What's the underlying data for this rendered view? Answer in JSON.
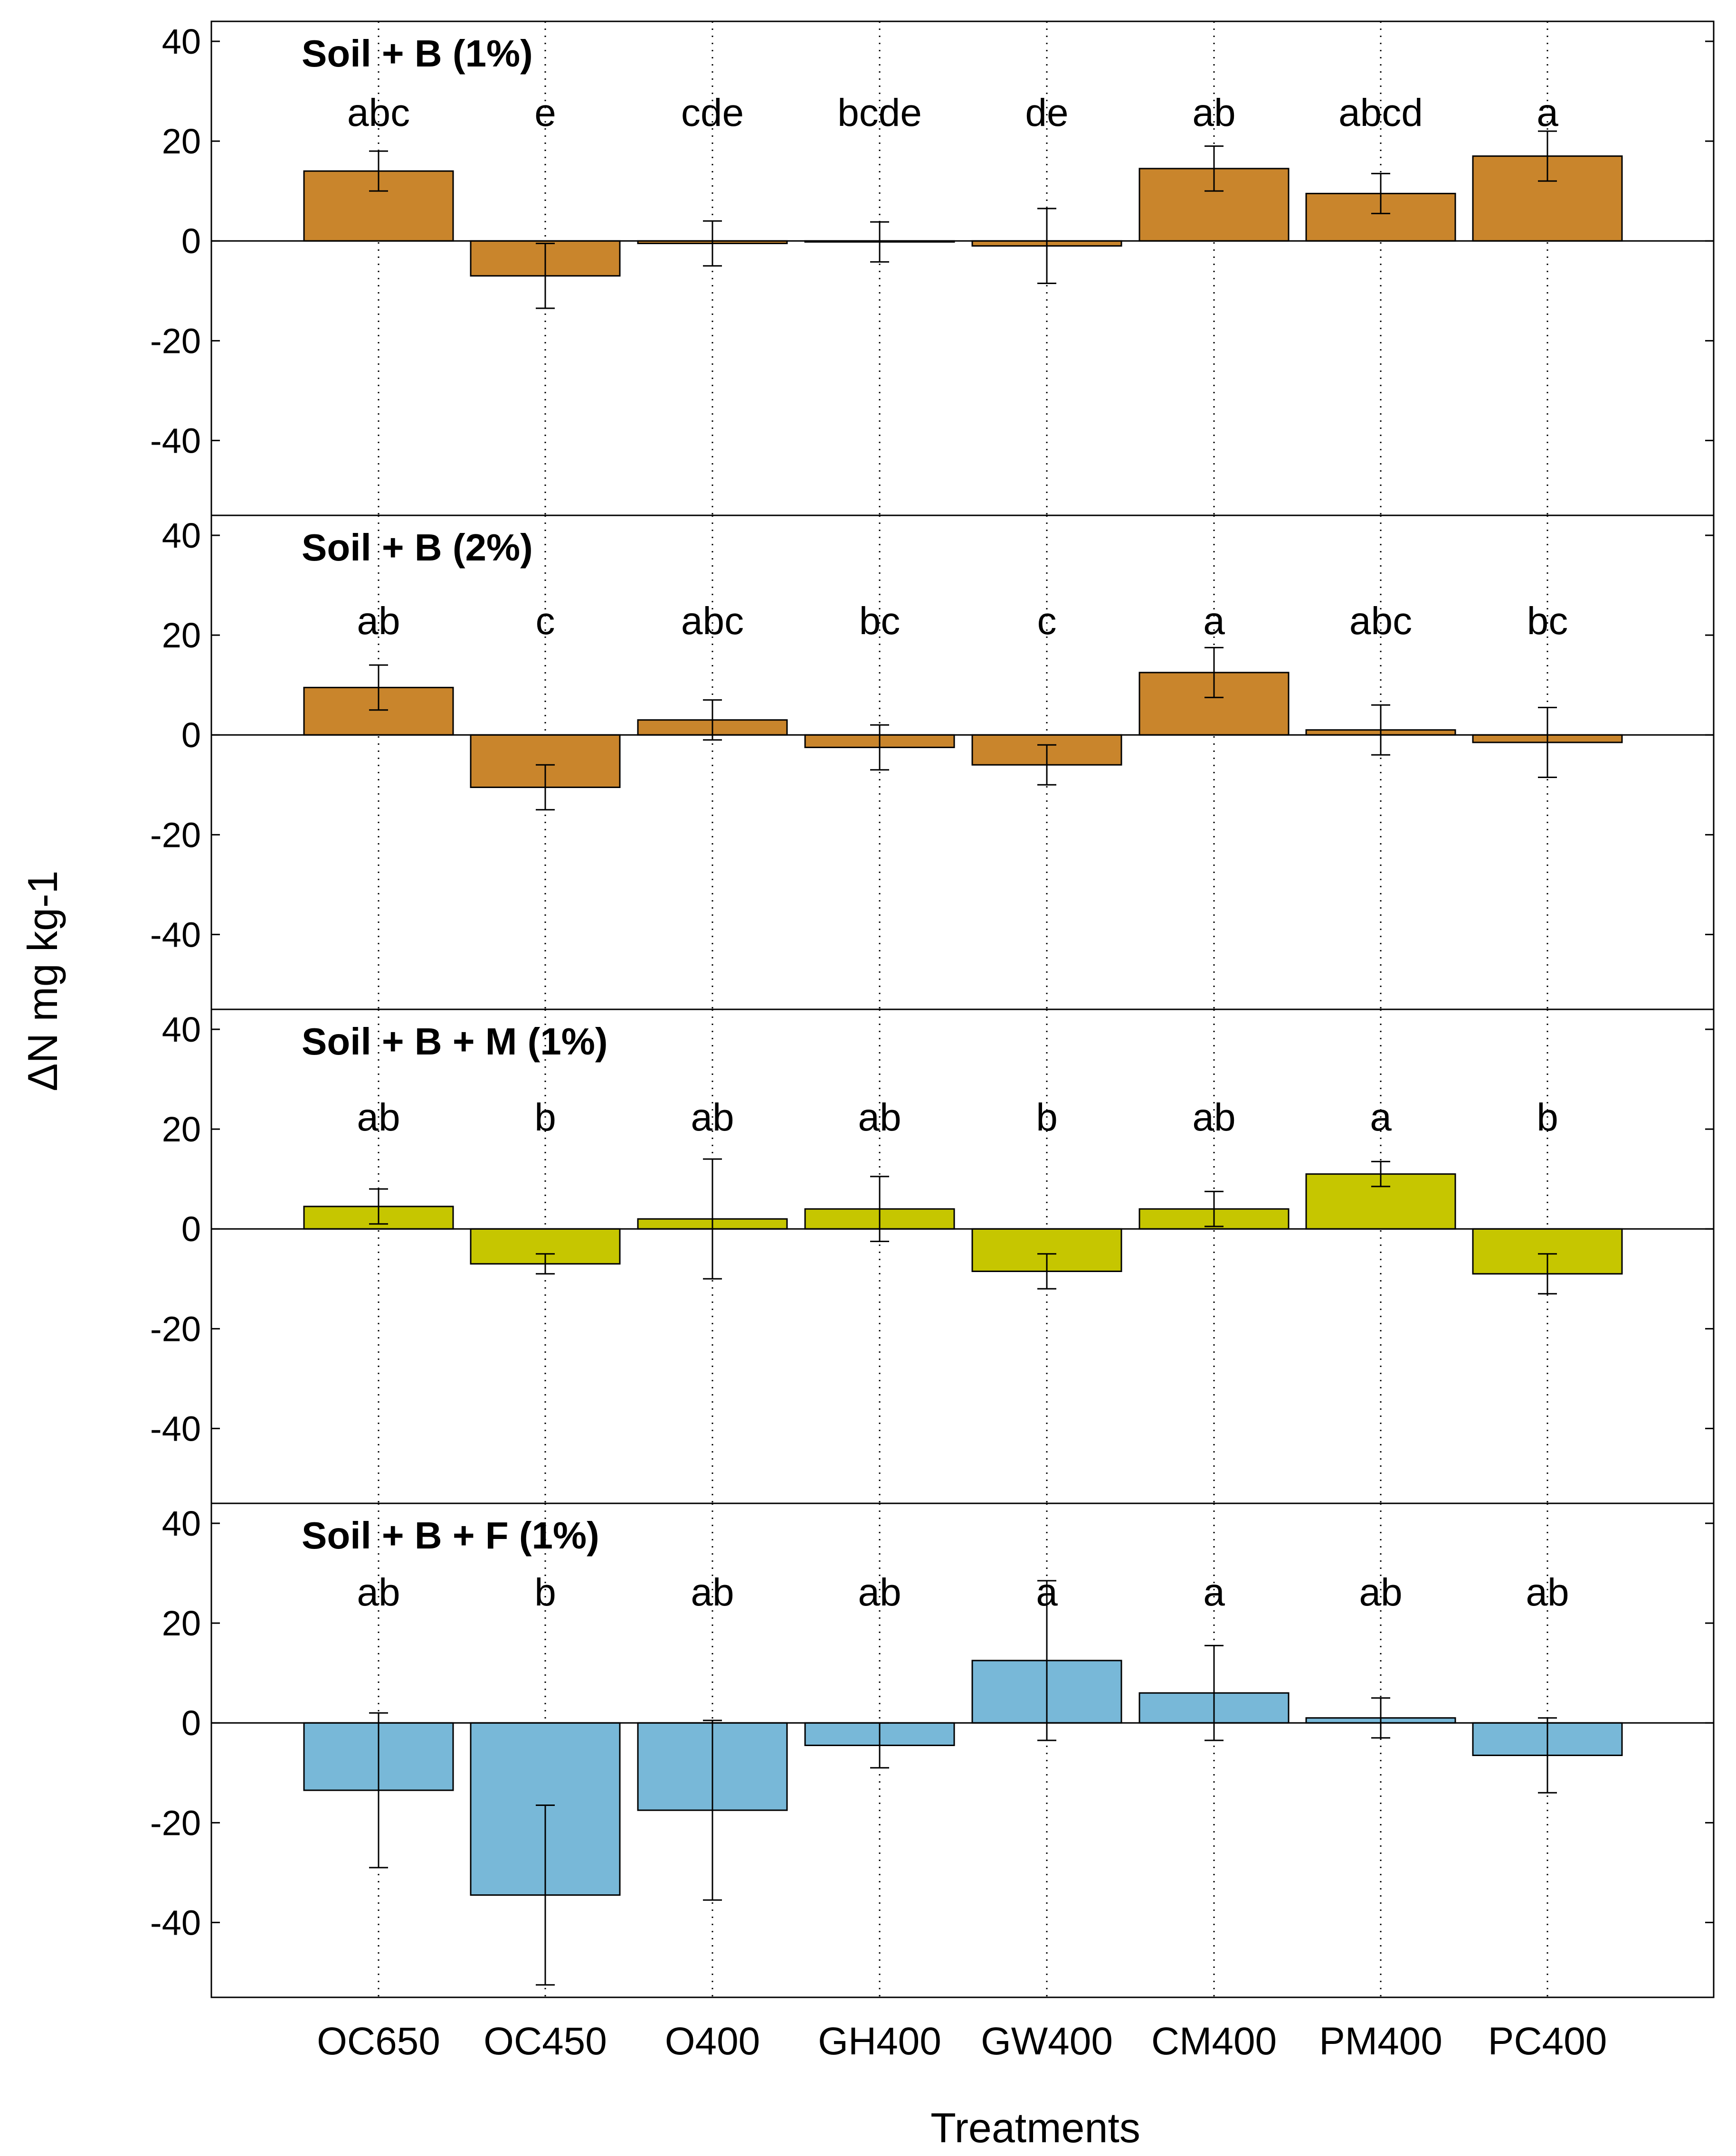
{
  "chart_data": {
    "type": "bar",
    "xlabel": "Treatments",
    "ylabel": "ΔN mg kg-1",
    "ylim": [
      -55,
      44
    ],
    "yticks": [
      -40,
      -20,
      0,
      20,
      40
    ],
    "grid": "vertical dotted lines at categories",
    "categories": [
      "OC650",
      "OC450",
      "O400",
      "GH400",
      "GW400",
      "CM400",
      "PM400",
      "PC400"
    ],
    "panels": [
      {
        "title": "Soil + B (1%)",
        "color": "#c9852c",
        "values": [
          14,
          -7,
          -0.5,
          -0.2,
          -1,
          14.5,
          9.5,
          17
        ],
        "errors": [
          4,
          6.5,
          4.5,
          4,
          7.5,
          4.5,
          4,
          5
        ],
        "letters": [
          "abc",
          "e",
          "cde",
          "bcde",
          "de",
          "ab",
          "abcd",
          "a"
        ]
      },
      {
        "title": "Soil + B (2%)",
        "color": "#c9852c",
        "values": [
          9.5,
          -10.5,
          3,
          -2.5,
          -6,
          12.5,
          1,
          -1.5
        ],
        "errors": [
          4.5,
          4.5,
          4,
          4.5,
          4,
          5,
          5,
          7
        ],
        "letters": [
          "ab",
          "c",
          "abc",
          "bc",
          "c",
          "a",
          "abc",
          "bc"
        ]
      },
      {
        "title": "Soil + B + M (1%)",
        "color": "#c6c600",
        "values": [
          4.5,
          -7,
          2,
          4,
          -8.5,
          4,
          11,
          -9
        ],
        "errors": [
          3.5,
          2,
          12,
          6.5,
          3.5,
          3.5,
          2.5,
          4
        ],
        "letters": [
          "ab",
          "b",
          "ab",
          "ab",
          "b",
          "ab",
          "a",
          "b"
        ]
      },
      {
        "title": "Soil + B + F (1%)",
        "color": "#78b8d8",
        "values": [
          -13.5,
          -34.5,
          -17.5,
          -4.5,
          12.5,
          6,
          1,
          -6.5
        ],
        "errors": [
          15.5,
          18,
          18,
          4.5,
          16,
          9.5,
          4,
          7.5
        ],
        "letters": [
          "ab",
          "b",
          "ab",
          "ab",
          "a",
          "a",
          "ab",
          "ab"
        ]
      }
    ]
  }
}
